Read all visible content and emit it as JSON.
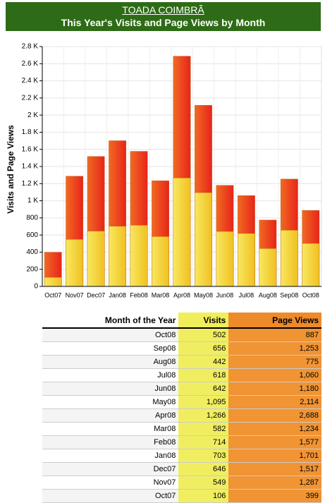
{
  "header": {
    "site": "TOADA COIMBRÃ"
  },
  "chart_data": {
    "type": "bar",
    "mode": "overlap",
    "title": "This Year's Visits and Page Views by Month",
    "y_label": "Visits and Page Views",
    "categories": [
      "Oct07",
      "Nov07",
      "Dec07",
      "Jan08",
      "Feb08",
      "Mar08",
      "Apr08",
      "May08",
      "Jun08",
      "Jul08",
      "Aug08",
      "Sep08",
      "Oct08"
    ],
    "series": [
      {
        "name": "Page Views",
        "color": "#e8241a",
        "values": [
          399,
          1287,
          1517,
          1701,
          1577,
          1234,
          2688,
          2114,
          1180,
          1060,
          775,
          1253,
          887
        ]
      },
      {
        "name": "Visits",
        "color": "#f0c020",
        "values": [
          106,
          549,
          646,
          703,
          714,
          582,
          1266,
          1095,
          642,
          618,
          442,
          656,
          502
        ]
      }
    ],
    "ylim": [
      0,
      2800
    ],
    "yticks": [
      0,
      200,
      400,
      600,
      800,
      {
        "value": 1000,
        "label": "1 K"
      },
      {
        "value": 1200,
        "label": "1.2 K"
      },
      {
        "value": 1400,
        "label": "1.4 K"
      },
      {
        "value": 1600,
        "label": "1.6 K"
      },
      {
        "value": 1800,
        "label": "1.8 K"
      },
      {
        "value": 2000,
        "label": "2 K"
      },
      {
        "value": 2200,
        "label": "2.2 K"
      },
      {
        "value": 2400,
        "label": "2.4 K"
      },
      {
        "value": 2600,
        "label": "2.6 K"
      },
      {
        "value": 2800,
        "label": "2.8 K"
      }
    ],
    "grid": true
  },
  "table": {
    "header": [
      "Month of the Year",
      "Visits",
      "Page Views"
    ],
    "rows": [
      [
        "Oct08",
        "502",
        "887"
      ],
      [
        "Sep08",
        "656",
        "1,253"
      ],
      [
        "Aug08",
        "442",
        "775"
      ],
      [
        "Jul08",
        "618",
        "1,060"
      ],
      [
        "Jun08",
        "642",
        "1,180"
      ],
      [
        "May08",
        "1,095",
        "2,114"
      ],
      [
        "Apr08",
        "1,266",
        "2,688"
      ],
      [
        "Mar08",
        "582",
        "1,234"
      ],
      [
        "Feb08",
        "714",
        "1,577"
      ],
      [
        "Jan08",
        "703",
        "1,701"
      ],
      [
        "Dec07",
        "646",
        "1,517"
      ],
      [
        "Nov07",
        "549",
        "1,287"
      ],
      [
        "Oct07",
        "106",
        "399"
      ]
    ]
  }
}
